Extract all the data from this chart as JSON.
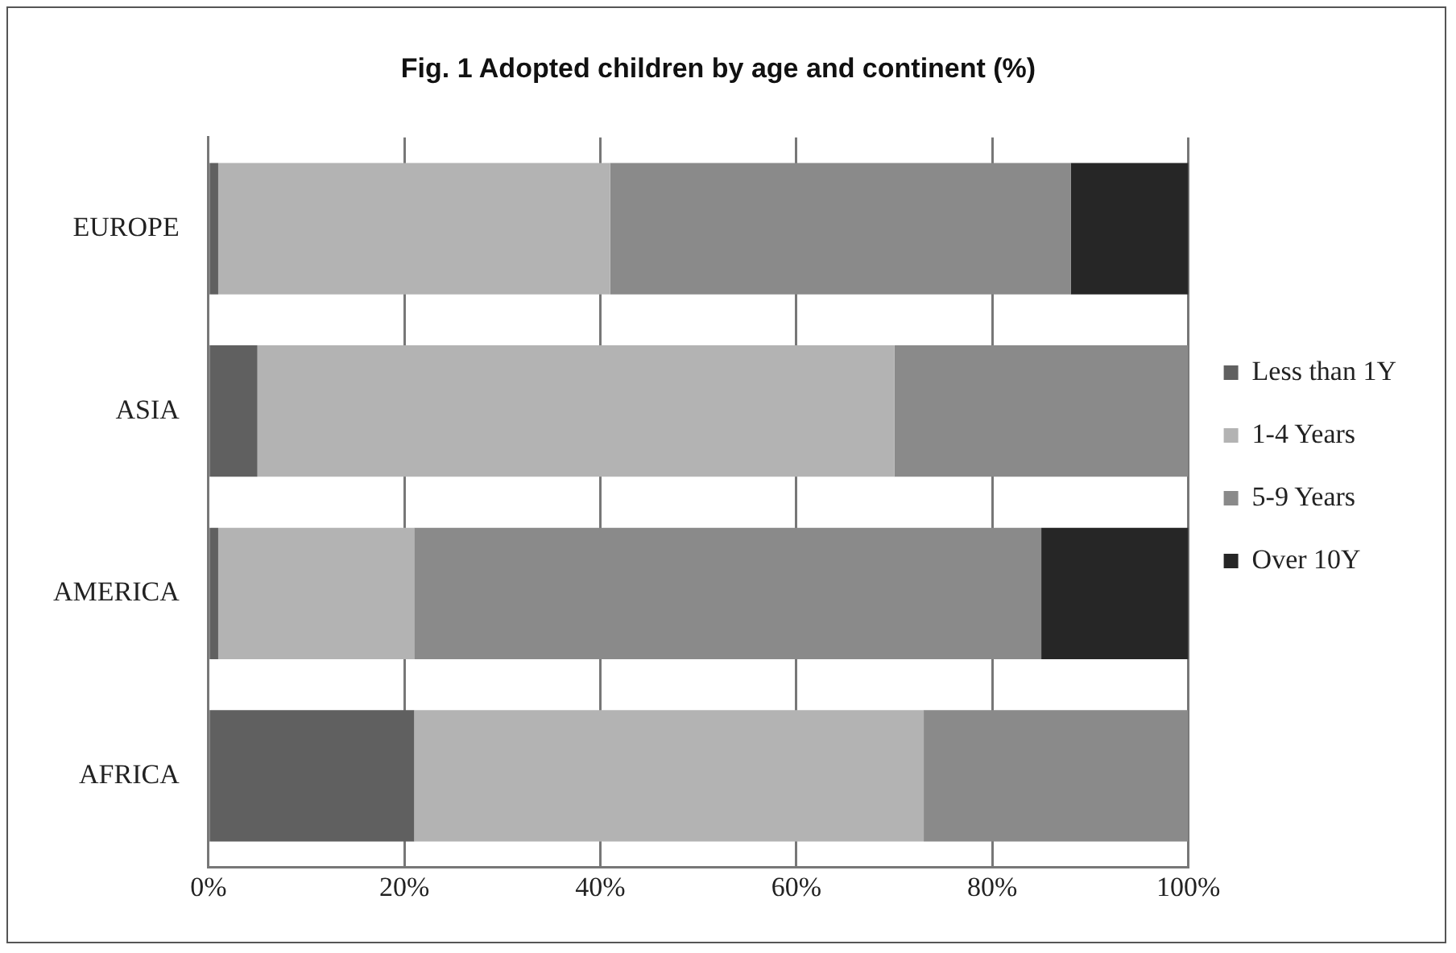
{
  "chart_data": {
    "type": "bar",
    "orientation": "horizontal",
    "stacked": true,
    "title": "Fig. 1 Adopted children by age and continent (%)",
    "categories": [
      "EUROPE",
      "ASIA",
      "AMERICA",
      "AFRICA"
    ],
    "series": [
      {
        "name": "Less than 1Y",
        "color": "#606060",
        "values": [
          1,
          5,
          1,
          21
        ]
      },
      {
        "name": "1-4 Years",
        "color": "#b3b3b3",
        "values": [
          40,
          65,
          20,
          52
        ]
      },
      {
        "name": "5-9 Years",
        "color": "#8a8a8a",
        "values": [
          47,
          30,
          64,
          27
        ]
      },
      {
        "name": "Over 10Y",
        "color": "#262626",
        "values": [
          12,
          0,
          15,
          0
        ]
      }
    ],
    "xlim": [
      0,
      100
    ],
    "xticks": [
      {
        "value": 0,
        "label": "0%"
      },
      {
        "value": 20,
        "label": "20%"
      },
      {
        "value": 40,
        "label": "40%"
      },
      {
        "value": 60,
        "label": "60%"
      },
      {
        "value": 80,
        "label": "80%"
      },
      {
        "value": 100,
        "label": "100%"
      }
    ],
    "grid": "x",
    "legend": "right"
  }
}
